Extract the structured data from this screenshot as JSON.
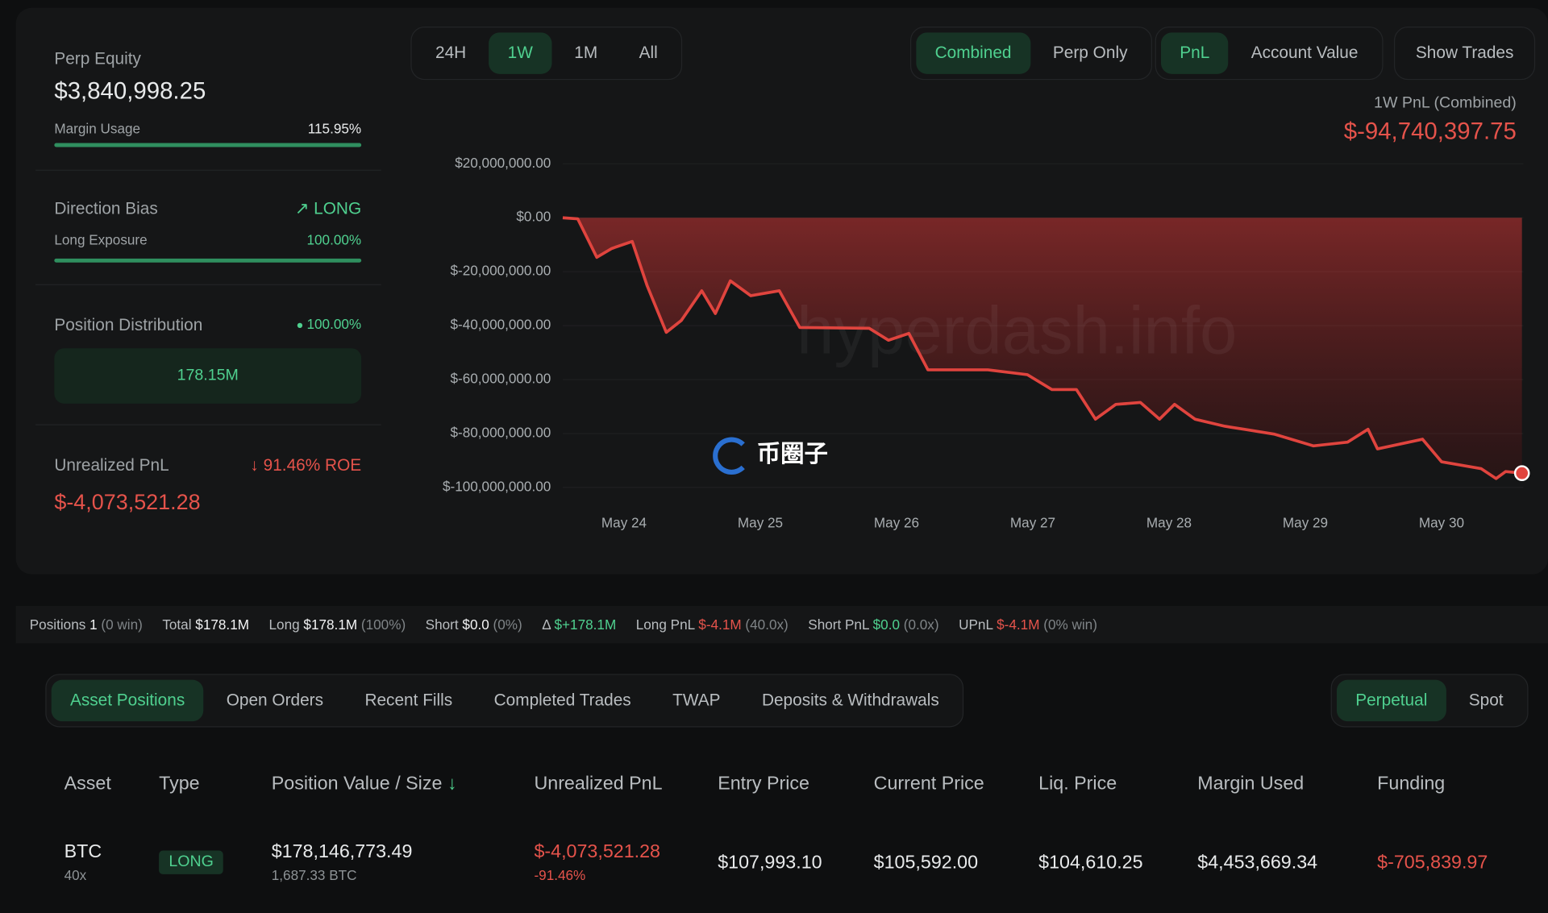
{
  "summary": {
    "perp_equity_label": "Perp Equity",
    "perp_equity": "$3,840,998.25",
    "margin_usage_label": "Margin Usage",
    "margin_usage": "115.95%",
    "direction_bias_label": "Direction Bias",
    "direction": "LONG",
    "long_exposure_label": "Long Exposure",
    "long_exposure": "100.00%",
    "position_distribution_label": "Position Distribution",
    "distribution_pct": "100.00%",
    "distribution_value": "178.15M",
    "unrealized_pnl_label": "Unrealized PnL",
    "roe": "91.46% ROE",
    "unrealized_pnl": "$-4,073,521.28"
  },
  "range_buttons": {
    "items": [
      "24H",
      "1W",
      "1M",
      "All"
    ],
    "active": 1
  },
  "view_buttons": {
    "items": [
      "Combined",
      "Perp Only"
    ],
    "active": 0
  },
  "metric_buttons": {
    "items": [
      "PnL",
      "Account Value"
    ],
    "active": 0
  },
  "show_trades": "Show Trades",
  "watermark": "hyperdash.info",
  "overlay_logo": "币圈子",
  "chart_data": {
    "type": "line",
    "title": "1W PnL (Combined)",
    "total": "$-94,740,397.75",
    "color": "#e0443e",
    "grid": true,
    "x": [
      23.55,
      23.66,
      23.8,
      23.91,
      24.06,
      24.17,
      24.31,
      24.42,
      24.57,
      24.67,
      24.78,
      24.93,
      25.14,
      25.29,
      25.8,
      25.94,
      26.09,
      26.23,
      26.67,
      26.96,
      27.14,
      27.32,
      27.46,
      27.61,
      27.79,
      27.93,
      28.04,
      28.19,
      28.41,
      28.55,
      28.77,
      29.06,
      29.31,
      29.46,
      29.53,
      29.86,
      30.0,
      30.29,
      30.4,
      30.47,
      30.59
    ],
    "values": [
      0,
      -400000,
      -14700000,
      -11400000,
      -8800000,
      -25300000,
      -42500000,
      -38100000,
      -27100000,
      -35500000,
      -23400000,
      -28900000,
      -27100000,
      -40700000,
      -41000000,
      -45400000,
      -42900000,
      -56400000,
      -56400000,
      -58200000,
      -63700000,
      -63700000,
      -74700000,
      -69200000,
      -68500000,
      -74700000,
      -69200000,
      -74700000,
      -77300000,
      -78400000,
      -80200000,
      -84600000,
      -83200000,
      -78400000,
      -85700000,
      -82100000,
      -90500000,
      -93000000,
      -96700000,
      -94100000,
      -94700000
    ],
    "xlim": [
      23.55,
      30.6
    ],
    "xticks": [
      {
        "value": 24,
        "label": "May 24"
      },
      {
        "value": 25,
        "label": "May 25"
      },
      {
        "value": 26,
        "label": "May 26"
      },
      {
        "value": 27,
        "label": "May 27"
      },
      {
        "value": 28,
        "label": "May 28"
      },
      {
        "value": 29,
        "label": "May 29"
      },
      {
        "value": 30,
        "label": "May 30"
      }
    ],
    "ylim": [
      -100000000,
      20000000
    ],
    "yticks": [
      {
        "value": 20000000,
        "label": "$20,000,000.00"
      },
      {
        "value": 0,
        "label": "$0.00"
      },
      {
        "value": -20000000,
        "label": "$-20,000,000.00"
      },
      {
        "value": -40000000,
        "label": "$-40,000,000.00"
      },
      {
        "value": -60000000,
        "label": "$-60,000,000.00"
      },
      {
        "value": -80000000,
        "label": "$-80,000,000.00"
      },
      {
        "value": -100000000,
        "label": "$-100,000,000.00"
      }
    ]
  },
  "stats": [
    {
      "label": "Positions",
      "value": "1",
      "note": "(0 win)"
    },
    {
      "label": "Total",
      "value": "$178.1M"
    },
    {
      "label": "Long",
      "value": "$178.1M",
      "note": "(100%)"
    },
    {
      "label": "Short",
      "value": "$0.0",
      "note": "(0%)"
    },
    {
      "label": "Δ",
      "value": "$+178.1M",
      "color": "#4fd08f"
    },
    {
      "label": "Long PnL",
      "value": "$-4.1M",
      "note": "(40.0x)",
      "color": "#e5534b"
    },
    {
      "label": "Short PnL",
      "value": "$0.0",
      "note": "(0.0x)",
      "color": "#4fd08f"
    },
    {
      "label": "UPnL",
      "value": "$-4.1M",
      "note": "(0% win)",
      "color": "#e5534b"
    }
  ],
  "tabs": {
    "items": [
      "Asset Positions",
      "Open Orders",
      "Recent Fills",
      "Completed Trades",
      "TWAP",
      "Deposits & Withdrawals"
    ],
    "active": 0
  },
  "market_tabs": {
    "items": [
      "Perpetual",
      "Spot"
    ],
    "active": 0
  },
  "table": {
    "columns": [
      "Asset",
      "Type",
      "Position Value / Size",
      "Unrealized PnL",
      "Entry Price",
      "Current Price",
      "Liq. Price",
      "Margin Used",
      "Funding"
    ],
    "rows": [
      {
        "asset": "BTC",
        "leverage": "40x",
        "type": "LONG",
        "position_value": "$178,146,773.49",
        "size": "1,687.33 BTC",
        "upnl": "$-4,073,521.28",
        "upnl_pct": "-91.46%",
        "entry": "$107,993.10",
        "current": "$105,592.00",
        "liq": "$104,610.25",
        "margin": "$4,453,669.34",
        "funding": "$-705,839.97"
      }
    ]
  }
}
